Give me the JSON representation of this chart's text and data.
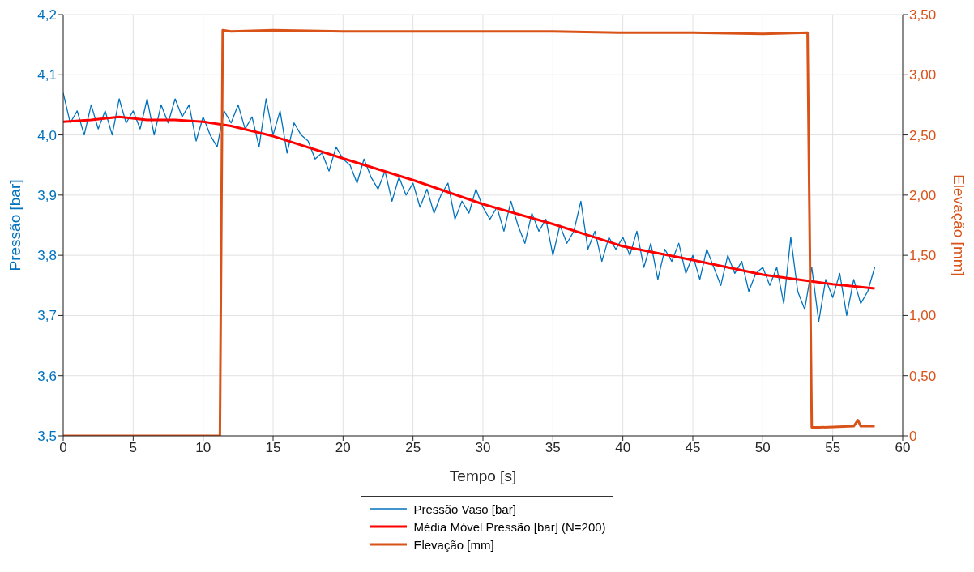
{
  "chart_data": {
    "type": "line",
    "xlabel": "Tempo [s]",
    "ylabel": "Pressão [bar]",
    "y2label": "Elevação [mm]",
    "xlim": [
      0,
      60
    ],
    "xticks": [
      0,
      5,
      10,
      15,
      20,
      25,
      30,
      35,
      40,
      45,
      50,
      55,
      60
    ],
    "ylim": [
      3.5,
      4.2
    ],
    "yticks": [
      {
        "value": 3.5,
        "label": "3,5"
      },
      {
        "value": 3.6,
        "label": "3,6"
      },
      {
        "value": 3.7,
        "label": "3,7"
      },
      {
        "value": 3.8,
        "label": "3,8"
      },
      {
        "value": 3.9,
        "label": "3,9"
      },
      {
        "value": 4.0,
        "label": "4,0"
      },
      {
        "value": 4.1,
        "label": "4,1"
      },
      {
        "value": 4.2,
        "label": "4,2"
      }
    ],
    "y2lim": [
      0,
      3.5
    ],
    "y2ticks": [
      0,
      {
        "value": 0.5,
        "label": "0,50"
      },
      {
        "value": 1.0,
        "label": "1,00"
      },
      {
        "value": 1.5,
        "label": "1,50"
      },
      {
        "value": 2.0,
        "label": "2,00"
      },
      {
        "value": 2.5,
        "label": "2,50"
      },
      {
        "value": 3.0,
        "label": "3,00"
      },
      {
        "value": 3.5,
        "label": "3,50"
      }
    ],
    "grid": true,
    "legend": "bottom",
    "series": [
      {
        "name": "Pressão Vaso [bar]",
        "color": "#0072bd",
        "x": [
          0,
          0.5,
          1,
          1.5,
          2,
          2.5,
          3,
          3.5,
          4,
          4.5,
          5,
          5.5,
          6,
          6.5,
          7,
          7.5,
          8,
          8.5,
          9,
          9.5,
          10,
          10.5,
          11,
          11.5,
          12,
          12.5,
          13,
          13.5,
          14,
          14.5,
          15,
          15.5,
          16,
          16.5,
          17,
          17.5,
          18,
          18.5,
          19,
          19.5,
          20,
          20.5,
          21,
          21.5,
          22,
          22.5,
          23,
          23.5,
          24,
          24.5,
          25,
          25.5,
          26,
          26.5,
          27,
          27.5,
          28,
          28.5,
          29,
          29.5,
          30,
          30.5,
          31,
          31.5,
          32,
          32.5,
          33,
          33.5,
          34,
          34.5,
          35,
          35.5,
          36,
          36.5,
          37,
          37.5,
          38,
          38.5,
          39,
          39.5,
          40,
          40.5,
          41,
          41.5,
          42,
          42.5,
          43,
          43.5,
          44,
          44.5,
          45,
          45.5,
          46,
          46.5,
          47,
          47.5,
          48,
          48.5,
          49,
          49.5,
          50,
          50.5,
          51,
          51.5,
          52,
          52.5,
          53,
          53.5,
          54,
          54.5,
          55,
          55.5,
          56,
          56.5,
          57,
          57.5,
          58
        ],
        "values": [
          4.07,
          4.02,
          4.04,
          4.0,
          4.05,
          4.01,
          4.04,
          4.0,
          4.06,
          4.02,
          4.04,
          4.01,
          4.06,
          4.0,
          4.05,
          4.02,
          4.06,
          4.03,
          4.05,
          3.99,
          4.03,
          4.0,
          3.98,
          4.04,
          4.02,
          4.05,
          4.01,
          4.03,
          3.98,
          4.06,
          4.0,
          4.04,
          3.97,
          4.02,
          4.0,
          3.99,
          3.96,
          3.97,
          3.94,
          3.98,
          3.96,
          3.95,
          3.92,
          3.96,
          3.93,
          3.91,
          3.94,
          3.89,
          3.93,
          3.9,
          3.92,
          3.88,
          3.91,
          3.87,
          3.9,
          3.92,
          3.86,
          3.89,
          3.87,
          3.91,
          3.88,
          3.86,
          3.88,
          3.84,
          3.89,
          3.85,
          3.82,
          3.87,
          3.84,
          3.86,
          3.8,
          3.85,
          3.82,
          3.84,
          3.89,
          3.81,
          3.84,
          3.79,
          3.83,
          3.81,
          3.83,
          3.8,
          3.84,
          3.78,
          3.82,
          3.76,
          3.81,
          3.79,
          3.82,
          3.77,
          3.8,
          3.76,
          3.81,
          3.78,
          3.75,
          3.8,
          3.77,
          3.79,
          3.74,
          3.77,
          3.78,
          3.75,
          3.78,
          3.72,
          3.83,
          3.74,
          3.71,
          3.78,
          3.69,
          3.76,
          3.73,
          3.77,
          3.7,
          3.76,
          3.72,
          3.74,
          3.78
        ]
      },
      {
        "name": "Média Móvel Pressão [bar] (N=200)",
        "color": "#ff0000",
        "x": [
          0,
          2,
          4,
          6,
          8,
          10,
          12,
          15,
          20,
          25,
          30,
          35,
          40,
          45,
          50,
          55,
          58
        ],
        "values": [
          4.022,
          4.025,
          4.03,
          4.025,
          4.025,
          4.022,
          4.015,
          3.998,
          3.961,
          3.925,
          3.885,
          3.852,
          3.815,
          3.792,
          3.768,
          3.752,
          3.745
        ]
      },
      {
        "name": "Elevação [mm]",
        "color": "#d95319",
        "axis": "y2",
        "x": [
          0,
          11.2,
          11.4,
          12,
          15,
          20,
          25,
          30,
          35,
          40,
          45,
          50,
          53.2,
          53.5,
          54,
          56.5,
          56.8,
          57,
          58
        ],
        "values": [
          0,
          0,
          3.37,
          3.36,
          3.37,
          3.36,
          3.36,
          3.36,
          3.36,
          3.35,
          3.35,
          3.34,
          3.35,
          0.07,
          0.07,
          0.08,
          0.13,
          0.08,
          0.08
        ]
      }
    ]
  }
}
